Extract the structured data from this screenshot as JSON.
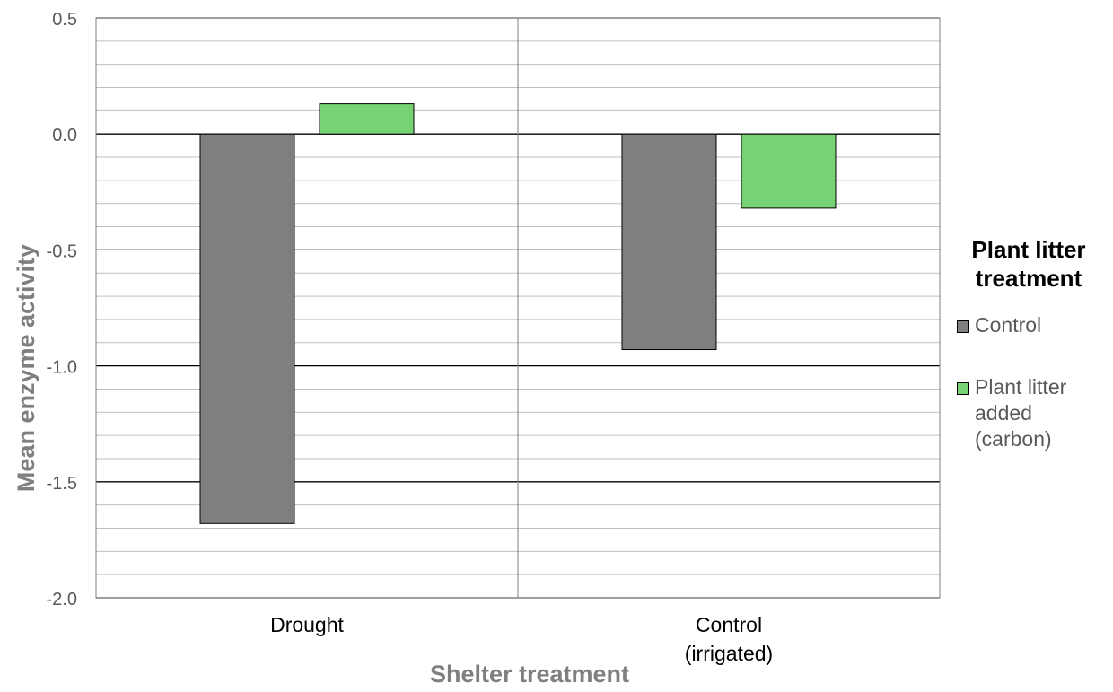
{
  "chart_data": {
    "type": "bar",
    "categories": [
      "Drought",
      "Control (irrigated)"
    ],
    "category_lines": [
      [
        "Drought"
      ],
      [
        "Control",
        "(irrigated)"
      ]
    ],
    "series": [
      {
        "name": "Control",
        "values": [
          -1.68,
          -0.93
        ],
        "color": "#7f7f7f"
      },
      {
        "name": "Plant litter added (carbon)",
        "values": [
          0.13,
          -0.32
        ],
        "color": "#77d274"
      }
    ],
    "xlabel": "Shelter treatment",
    "ylabel": "Mean enzyme activity",
    "ylim": [
      -2.0,
      0.5
    ],
    "yticks": [
      "-2.0",
      "-1.5",
      "-1.0",
      "-0.5",
      "0.0",
      "0.5"
    ],
    "grid": true,
    "legend": {
      "title": "Plant litter treatment",
      "placement": "right"
    }
  }
}
